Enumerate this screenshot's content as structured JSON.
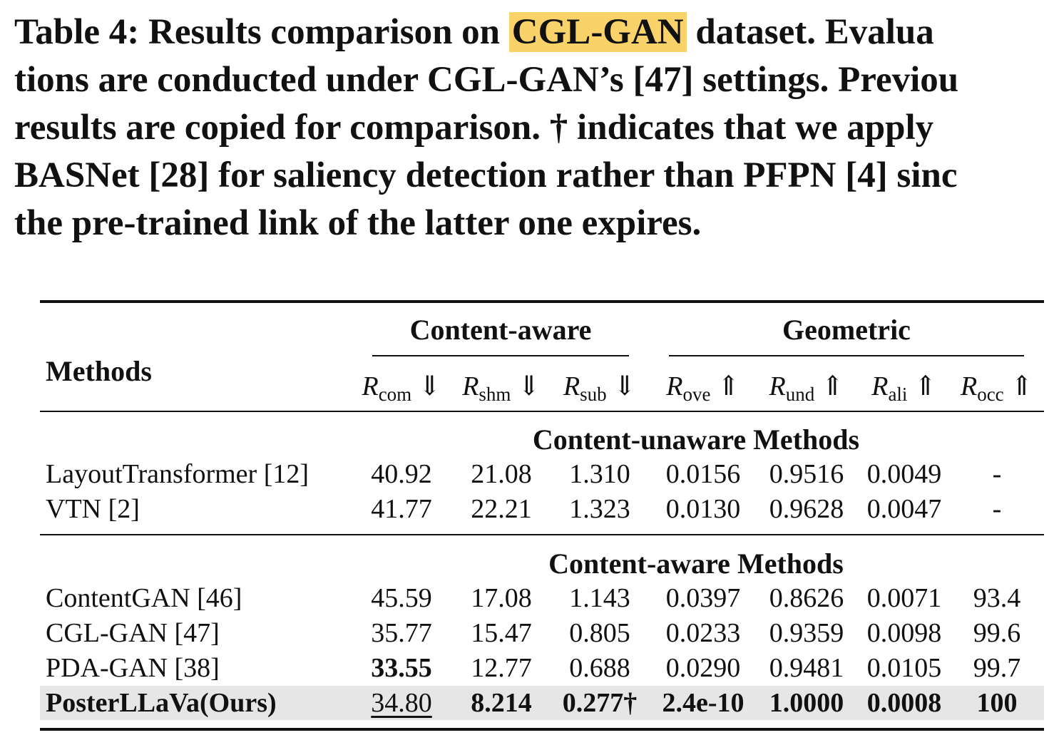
{
  "caption": {
    "label": "Table 4:",
    "lines": [
      "Results comparison on ",
      "CGL-GAN",
      " dataset. Evalua",
      "tions are conducted under CGL-GAN’s [47] settings. Previou",
      "results are copied for comparison. † indicates that we apply",
      "BASNet [28] for saliency detection rather than PFPN [4] sinc",
      "the pre-trained link of the latter one expires."
    ],
    "highlight_color": "#f9d36a"
  },
  "table": {
    "methods_header": "Methods",
    "groups": [
      "Content-aware",
      "Geometric"
    ],
    "metrics": [
      {
        "base": "R",
        "sub": "com",
        "arrow": "⇓"
      },
      {
        "base": "R",
        "sub": "shm",
        "arrow": "⇓"
      },
      {
        "base": "R",
        "sub": "sub",
        "arrow": "⇓"
      },
      {
        "base": "R",
        "sub": "ove",
        "arrow": "⇑"
      },
      {
        "base": "R",
        "sub": "und",
        "arrow": "⇑"
      },
      {
        "base": "R",
        "sub": "ali",
        "arrow": "⇑"
      },
      {
        "base": "R",
        "sub": "occ",
        "arrow": "⇑"
      }
    ],
    "sections": [
      {
        "title": "Content-unaware Methods",
        "rows": [
          {
            "method": "LayoutTransformer [12]",
            "values": [
              "40.92",
              "21.08",
              "1.310",
              "0.0156",
              "0.9516",
              "0.0049",
              "-"
            ]
          },
          {
            "method": "VTN [2]",
            "values": [
              "41.77",
              "22.21",
              "1.323",
              "0.0130",
              "0.9628",
              "0.0047",
              "-"
            ]
          }
        ]
      },
      {
        "title": "Content-aware Methods",
        "rows": [
          {
            "method": "ContentGAN [46]",
            "values": [
              "45.59",
              "17.08",
              "1.143",
              "0.0397",
              "0.8626",
              "0.0071",
              "93.4"
            ]
          },
          {
            "method": "CGL-GAN [47]",
            "values": [
              "35.77",
              "15.47",
              "0.805",
              "0.0233",
              "0.9359",
              "0.0098",
              "99.6"
            ]
          },
          {
            "method": "PDA-GAN [38]",
            "values": [
              "33.55",
              "12.77",
              "0.688",
              "0.0290",
              "0.9481",
              "0.0105",
              "99.7"
            ]
          },
          {
            "method": "PosterLLaVa(Ours)",
            "values": [
              "34.80",
              "8.214",
              "0.277†",
              "2.4e-10",
              "1.0000",
              "0.0008",
              "100"
            ]
          }
        ]
      }
    ],
    "highlight_row_color": "#e6e6e6"
  }
}
